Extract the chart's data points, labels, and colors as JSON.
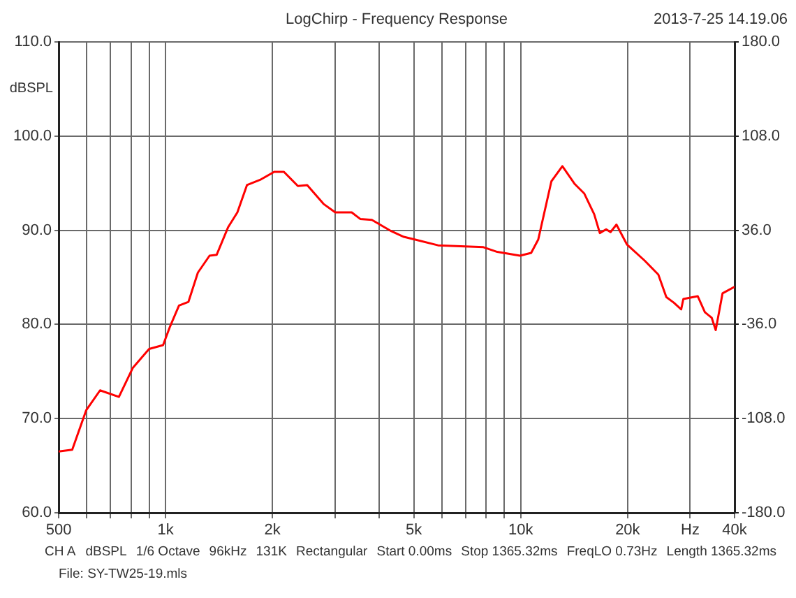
{
  "chart_data": {
    "type": "line",
    "title": "LogChirp - Frequency Response",
    "ylabel": "dBSPL",
    "annotations": [
      "2013-7-25 14.19.06",
      "CH A",
      "dBSPL",
      "1/6 Octave",
      "96kHz",
      "131K",
      "Rectangular",
      "Start 0.00ms",
      "Stop 1365.32ms",
      "FreqLO 0.73Hz",
      "Length 1365.32ms",
      "File: SY-TW25-19.mls"
    ],
    "log": "x",
    "grid": true,
    "legend": false,
    "marker": "none",
    "line_style": "solid",
    "xlim": [
      500,
      40000
    ],
    "xticks": [
      500,
      {
        "value": 600,
        "label": null
      },
      {
        "value": 700,
        "label": null
      },
      {
        "value": 800,
        "label": null
      },
      {
        "value": 900,
        "label": null
      },
      {
        "value": 1000,
        "label": "1k"
      },
      {
        "value": 2000,
        "label": "2k"
      },
      {
        "value": 3000,
        "label": null
      },
      {
        "value": 4000,
        "label": null
      },
      {
        "value": 5000,
        "label": "5k"
      },
      {
        "value": 6000,
        "label": null
      },
      {
        "value": 7000,
        "label": null
      },
      {
        "value": 8000,
        "label": null
      },
      {
        "value": 9000,
        "label": null
      },
      {
        "value": 10000,
        "label": "10k"
      },
      {
        "value": 20000,
        "label": "20k"
      },
      {
        "value": 30000,
        "label": "Hz"
      },
      {
        "value": 40000,
        "label": "40k"
      }
    ],
    "ylim": [
      60,
      110
    ],
    "yticks": [
      {
        "value": 60,
        "label": "60.0"
      },
      {
        "value": 70,
        "label": "70.0"
      },
      {
        "value": 80,
        "label": "80.0"
      },
      {
        "value": 90,
        "label": "90.0"
      },
      {
        "value": 100,
        "label": "100.0"
      },
      {
        "value": 110,
        "label": "110.0"
      }
    ],
    "y2lim": [
      -180,
      180
    ],
    "y2ticks": [
      {
        "value": -180,
        "label": "-180.0"
      },
      {
        "value": -108,
        "label": "-108.0"
      },
      {
        "value": -36,
        "label": "-36.0"
      },
      {
        "value": 36,
        "label": "36.0"
      },
      {
        "value": 108,
        "label": "108.0"
      },
      {
        "value": 180,
        "label": "180.0"
      }
    ],
    "series": [
      {
        "color": "#ff0000",
        "x": [
          500,
          546,
          598,
          654,
          739,
          809,
          899,
          984,
          1030,
          1091,
          1160,
          1233,
          1330,
          1393,
          1499,
          1593,
          1695,
          1856,
          2022,
          2154,
          2358,
          2505,
          2784,
          3004,
          3343,
          3533,
          3810,
          4322,
          4686,
          5048,
          5850,
          6776,
          7851,
          8590,
          9953,
          10700,
          11200,
          12200,
          13100,
          14200,
          15100,
          16100,
          16700,
          17400,
          17900,
          18600,
          19900,
          22300,
          24400,
          25700,
          27000,
          28300,
          28700,
          31500,
          33000,
          34500,
          35400,
          37000,
          40000
        ],
        "values": [
          66.5,
          66.7,
          70.9,
          73.0,
          72.3,
          75.4,
          77.4,
          77.8,
          79.8,
          82.0,
          82.4,
          85.5,
          87.3,
          87.4,
          90.3,
          91.9,
          94.8,
          95.4,
          96.2,
          96.2,
          94.7,
          94.8,
          92.8,
          91.9,
          91.9,
          91.2,
          91.1,
          89.9,
          89.3,
          89.0,
          88.4,
          88.3,
          88.2,
          87.7,
          87.3,
          87.6,
          89.0,
          95.2,
          96.8,
          94.9,
          93.9,
          91.7,
          89.7,
          90.1,
          89.8,
          90.6,
          88.5,
          86.8,
          85.3,
          82.9,
          82.3,
          81.6,
          82.7,
          83.0,
          81.3,
          80.7,
          79.4,
          83.3,
          84.0
        ]
      }
    ]
  }
}
